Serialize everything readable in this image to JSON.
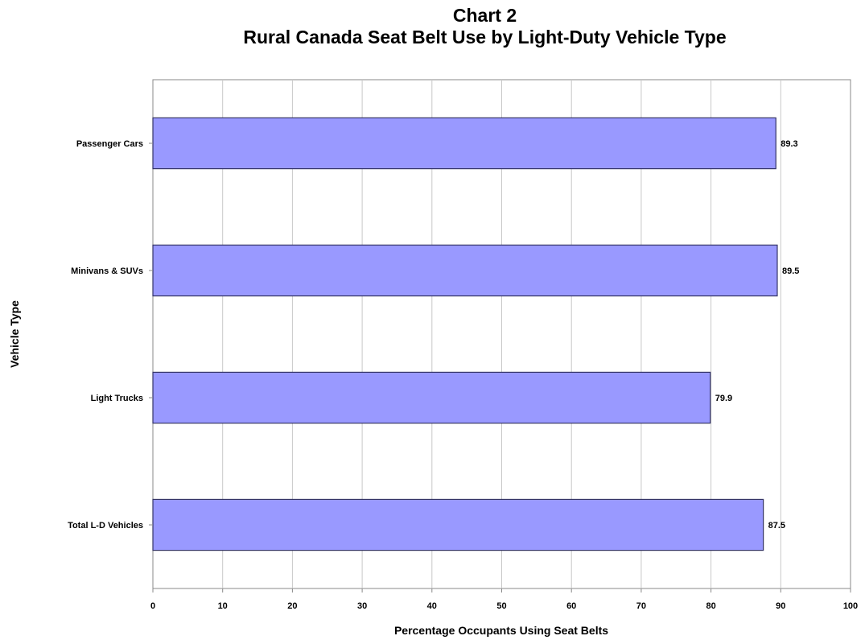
{
  "chart_data": {
    "type": "bar",
    "orientation": "horizontal",
    "title": "Chart 2",
    "subtitle": "Rural Canada Seat Belt Use by Light-Duty Vehicle Type",
    "xlabel": "Percentage Occupants Using Seat Belts",
    "ylabel": "Vehicle Type",
    "categories": [
      "Passenger Cars",
      "Minivans & SUVs",
      "Light Trucks",
      "Total L-D Vehicles"
    ],
    "values": [
      89.3,
      89.5,
      79.9,
      87.5
    ],
    "value_labels": [
      "89.3",
      "89.5",
      "79.9",
      "87.5"
    ],
    "xlim": [
      0,
      100
    ],
    "xticks": [
      0,
      10,
      20,
      30,
      40,
      50,
      60,
      70,
      80,
      90,
      100
    ],
    "grid": "vertical",
    "legend": "none",
    "bar_color": "#9999ff",
    "bar_edge_color": "#333366"
  }
}
